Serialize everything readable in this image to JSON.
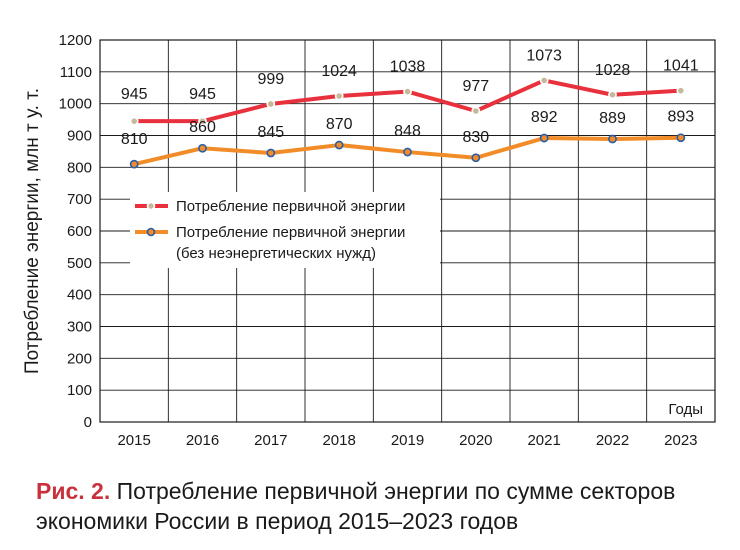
{
  "chart_data": {
    "type": "line",
    "categories": [
      "2015",
      "2016",
      "2017",
      "2018",
      "2019",
      "2020",
      "2021",
      "2022",
      "2023"
    ],
    "series": [
      {
        "name": "Потребление первичной энергии",
        "values": [
          945,
          945,
          999,
          1024,
          1038,
          977,
          1073,
          1028,
          1041
        ],
        "color": "#e8313c"
      },
      {
        "name": "Потребление первичной энергии",
        "name_line2": "(без неэнергетических нужд)",
        "values": [
          810,
          860,
          845,
          870,
          848,
          830,
          892,
          889,
          893
        ],
        "color": "#f28c28"
      }
    ],
    "ylabel": "Потребление энергии, млн т у. т.",
    "xlabel": "Годы",
    "ylim": [
      0,
      1200
    ],
    "yticks": [
      0,
      100,
      200,
      300,
      400,
      500,
      600,
      700,
      800,
      900,
      1000,
      1100,
      1200
    ],
    "grid": true,
    "legend_position": "center-left"
  },
  "caption": {
    "prefix": "Рис. 2.",
    "text": " Потребление первичной энергии по сумме секторов экономики России в период 2015–2023 годов"
  }
}
